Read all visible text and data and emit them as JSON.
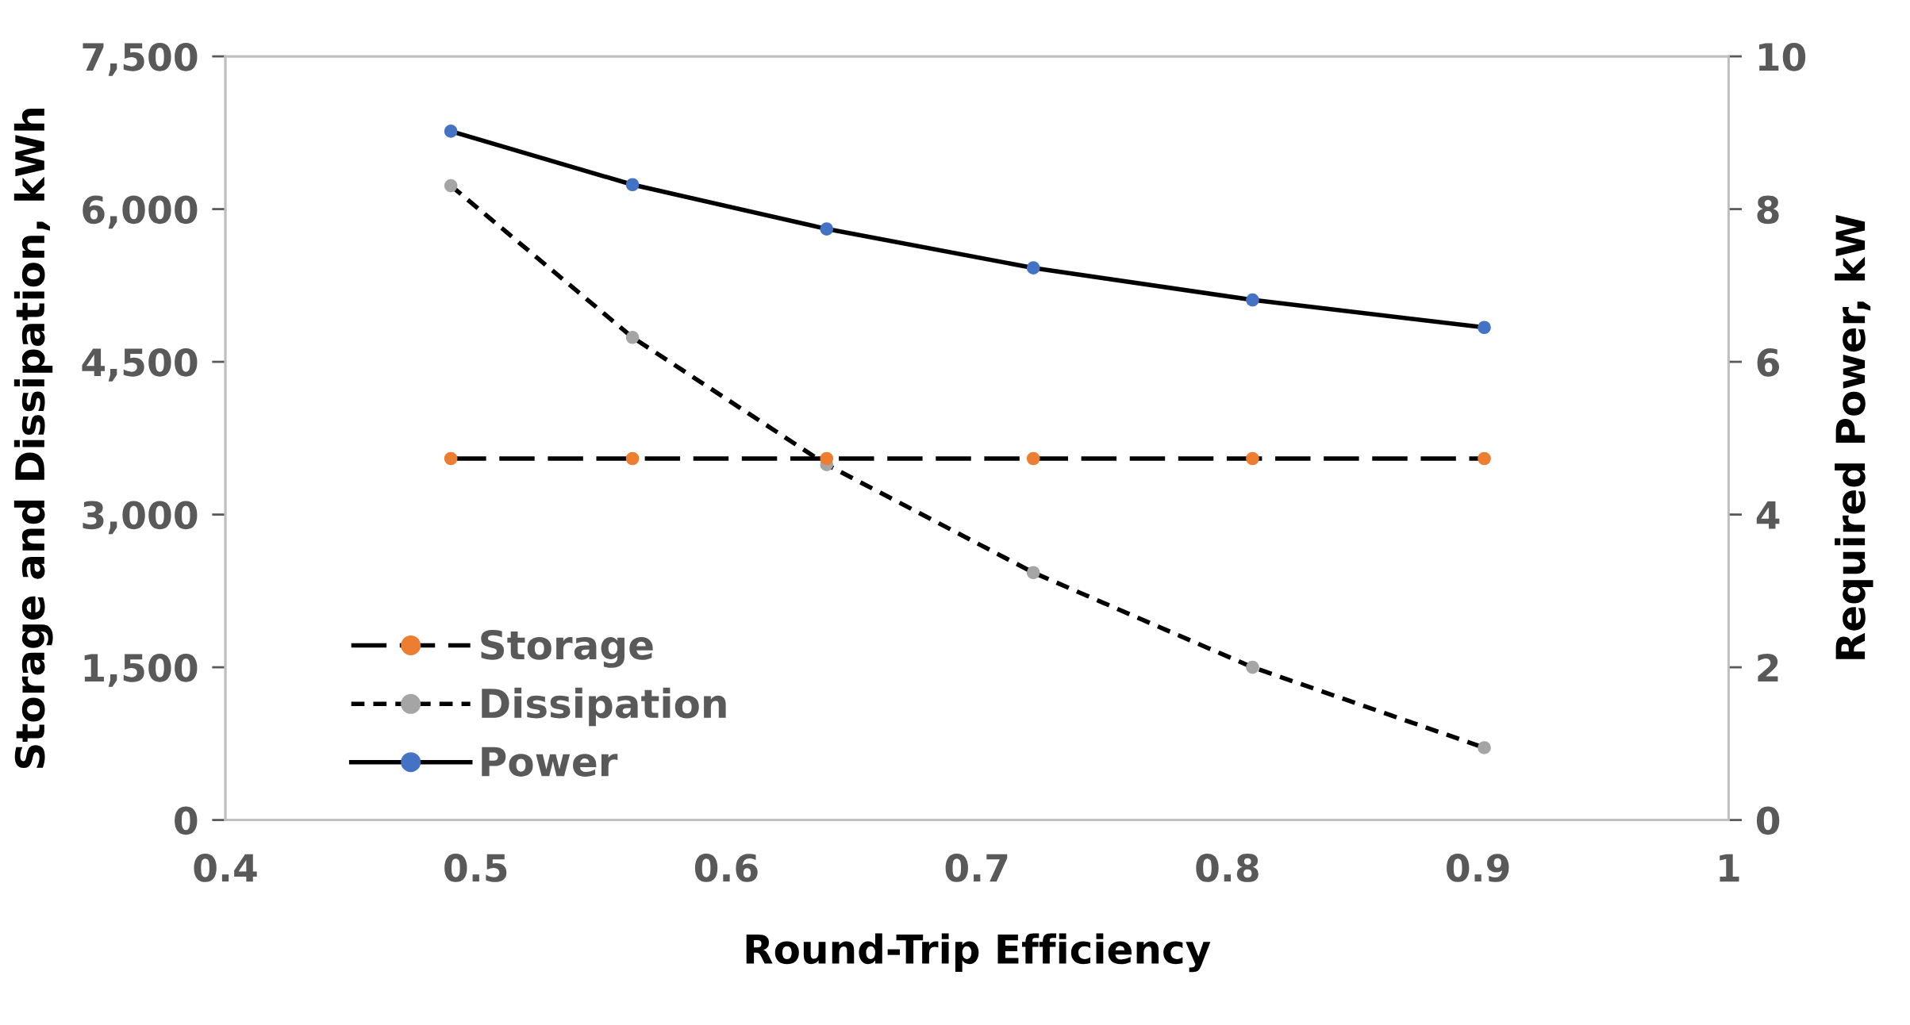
{
  "chart_data": {
    "type": "line",
    "xlabel": "Round-Trip Efficiency",
    "ylabel": "Storage and Dissipation, kWh",
    "y2label": "Required Power, kW",
    "x": [
      0.49,
      0.5625,
      0.64,
      0.7225,
      0.81,
      0.9025
    ],
    "series": [
      {
        "name": "Storage",
        "color": "#ed7d31",
        "line_style": "dashed",
        "values": [
          3550,
          3550,
          3550,
          3550,
          3550,
          3550
        ]
      },
      {
        "name": "Dissipation",
        "color": "#a5a5a5",
        "line_style": "dotted",
        "values": [
          6230,
          4740,
          3490,
          2430,
          1500,
          710
        ]
      },
      {
        "name": "Power",
        "color": "#4472c4",
        "line_style": "solid",
        "axis": "y2",
        "values": [
          9.02,
          8.32,
          7.74,
          7.23,
          6.81,
          6.45
        ]
      }
    ],
    "xlim": [
      0.4,
      1
    ],
    "xticks": [
      0.4,
      0.5,
      0.6,
      0.7,
      0.8,
      0.9,
      1
    ],
    "ylim": [
      0,
      7500
    ],
    "yticks": [
      0,
      {
        "value": 1500,
        "label": "1,500"
      },
      {
        "value": 3000,
        "label": "3,000"
      },
      {
        "value": 4500,
        "label": "4,500"
      },
      {
        "value": 6000,
        "label": "6,000"
      },
      {
        "value": 7500,
        "label": "7,500"
      }
    ],
    "y2lim": [
      0,
      10
    ],
    "y2ticks": [
      0,
      2,
      4,
      6,
      8,
      10
    ],
    "marker": "circle",
    "grid": false,
    "legend": "bottom left"
  }
}
